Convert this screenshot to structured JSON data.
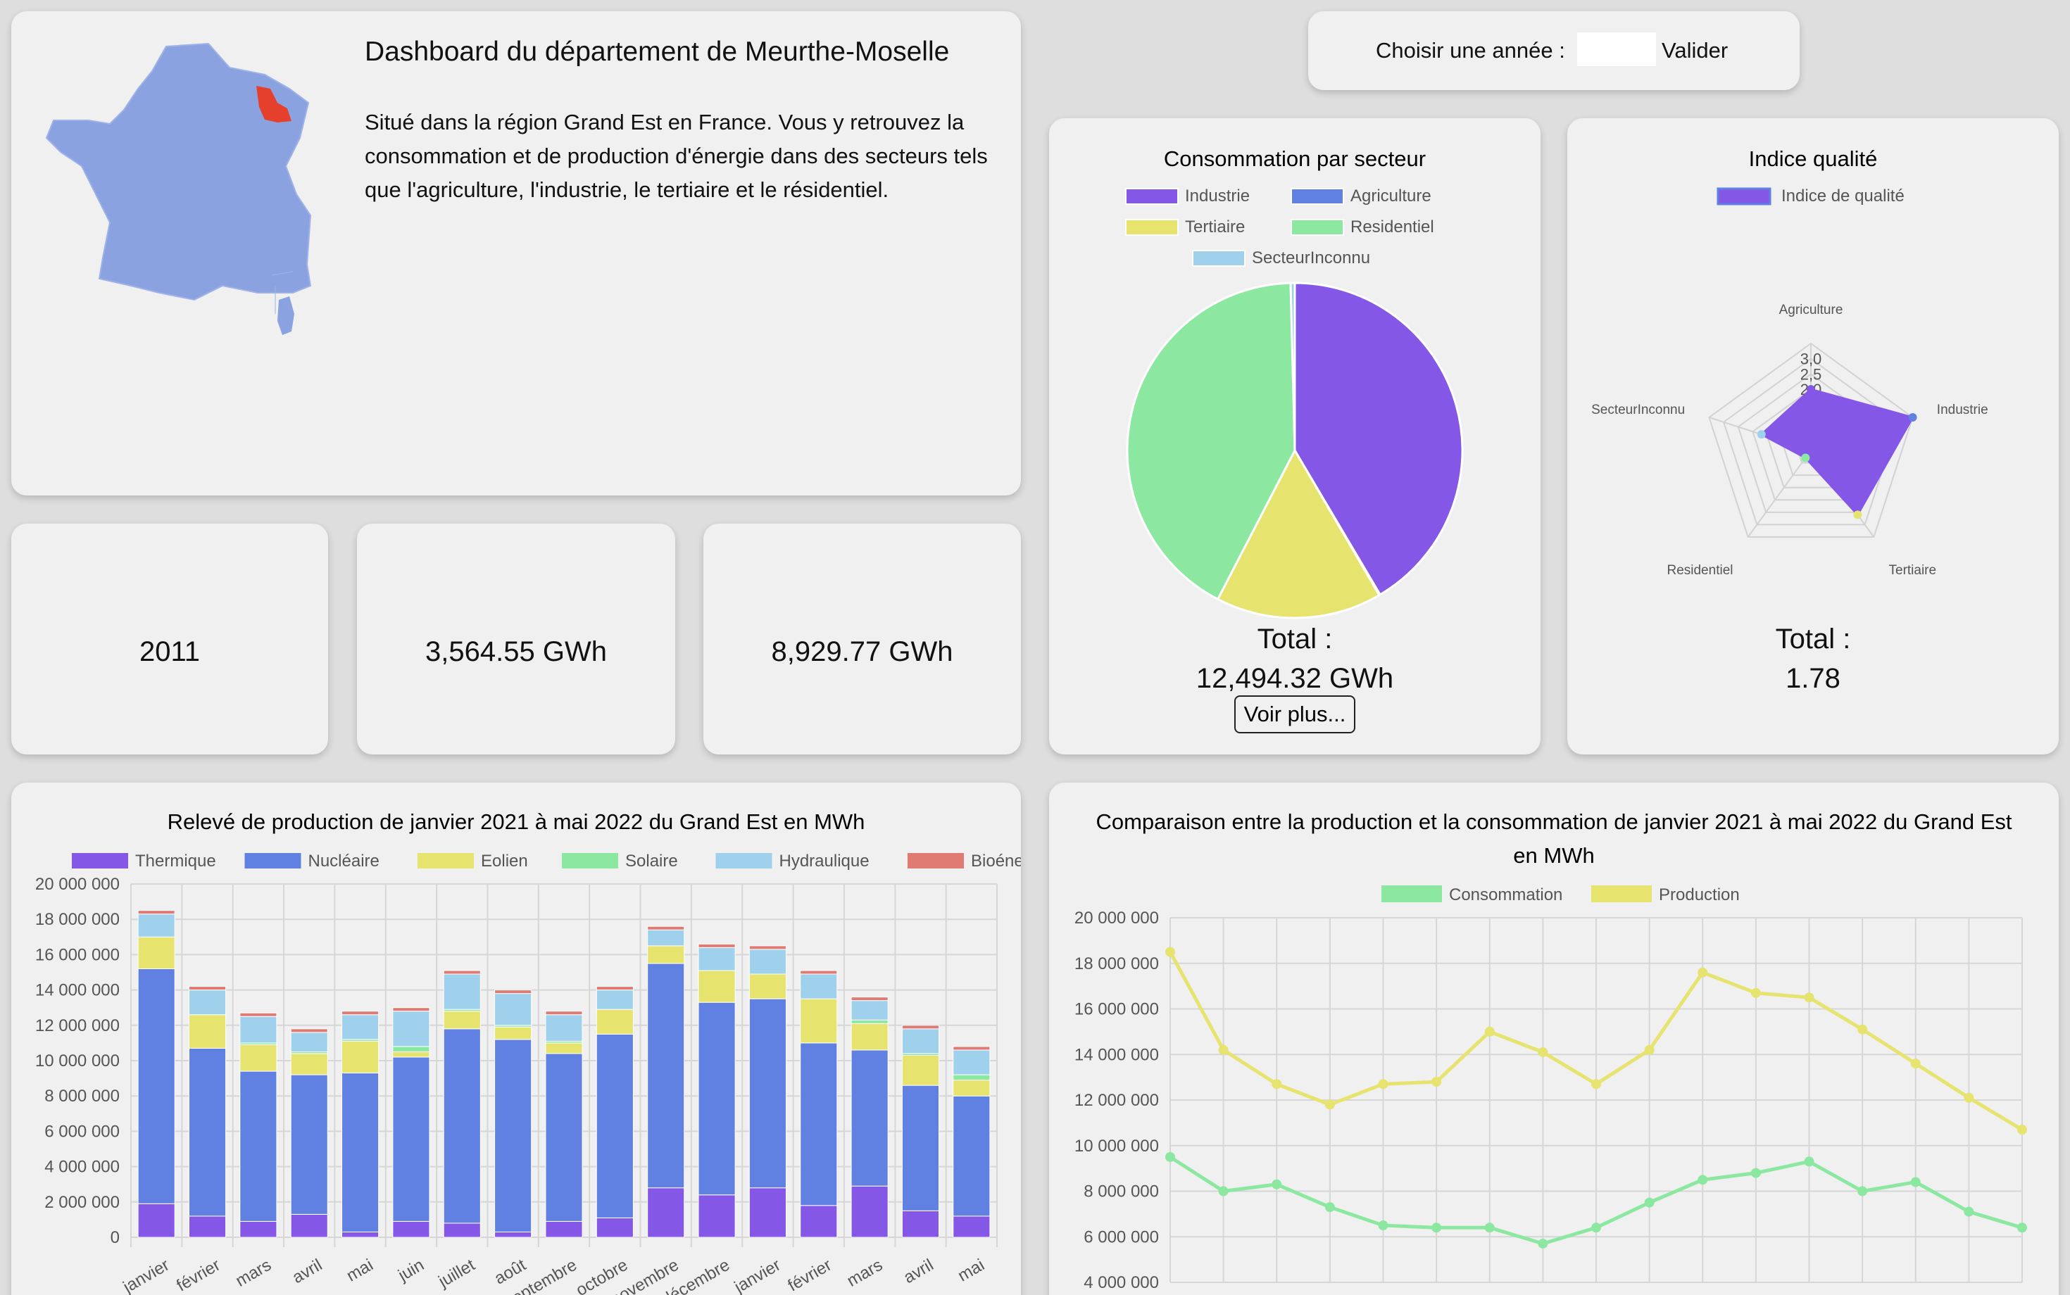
{
  "header": {
    "title": "Dashboard du département de Meurthe-Moselle",
    "description": "Situé dans la région Grand Est en France. Vous y retrouvez la consommation et de production d'énergie dans des secteurs tels que l'agriculture, l'industrie, le tertiaire et le résidentiel."
  },
  "year_picker": {
    "label": "Choisir une année :",
    "value": "",
    "submit_label": "Valider"
  },
  "kpis": [
    {
      "value": "2011"
    },
    {
      "value": "3,564.55 GWh"
    },
    {
      "value": "8,929.77 GWh"
    }
  ],
  "colors": {
    "purple": "#8457e6",
    "blue": "#6080e2",
    "yellow": "#e6e36e",
    "green": "#8ce8a0",
    "lightblue": "#9fd0ec",
    "red": "#df7b72"
  },
  "consumption_card": {
    "total_label": "Total :",
    "total_value": "12,494.32 GWh",
    "more_button": "Voir plus..."
  },
  "quality_card": {
    "total_label": "Total :",
    "total_value": "1.78"
  },
  "chart_data": [
    {
      "type": "pie",
      "title": "Consommation par secteur",
      "labels": [
        "Industrie",
        "Agriculture",
        "Tertiaire",
        "Residentiel",
        "SecteurInconnu"
      ],
      "values": [
        41.5,
        0.1,
        16.0,
        42.0,
        0.4
      ],
      "colors": [
        "#8457e6",
        "#6080e2",
        "#e6e36e",
        "#8ce8a0",
        "#9fd0ec"
      ],
      "legend": "top"
    },
    {
      "type": "radar",
      "title": "Indice qualité",
      "series": [
        {
          "name": "Indice de qualité",
          "values": [
            2.0,
            3.5,
            2.6,
            0.3,
            1.7
          ]
        }
      ],
      "axes": [
        "Agriculture",
        "Industrie",
        "Tertiaire",
        "Residentiel",
        "SecteurInconnu"
      ],
      "axis_colors": [
        "#8457e6",
        "#6080e2",
        "#e6e36e",
        "#8ce8a0",
        "#9fd0ec"
      ],
      "ticks": [
        "2,0",
        "2,5",
        "3,0"
      ],
      "range": [
        0,
        3.5
      ]
    },
    {
      "type": "bar",
      "stacked": true,
      "title": "Relevé de production de janvier 2021 à mai 2022 du Grand Est en MWh",
      "categories": [
        "janvier",
        "février",
        "mars",
        "avril",
        "mai",
        "juin",
        "juillet",
        "août",
        "septembre",
        "octobre",
        "novembre",
        "décembre",
        "janvier",
        "février",
        "mars",
        "avril",
        "mai"
      ],
      "series": [
        {
          "name": "Thermique",
          "values": [
            1900000,
            1200000,
            900000,
            1300000,
            300000,
            900000,
            800000,
            300000,
            900000,
            1100000,
            2800000,
            2400000,
            2800000,
            1800000,
            2900000,
            1500000,
            1200000
          ]
        },
        {
          "name": "Nucléaire",
          "values": [
            13300000,
            9500000,
            8500000,
            7900000,
            9000000,
            9300000,
            11000000,
            10900000,
            9500000,
            10400000,
            12700000,
            10900000,
            10700000,
            9200000,
            7700000,
            7100000,
            6800000
          ]
        },
        {
          "name": "Eolien",
          "values": [
            1800000,
            1900000,
            1500000,
            1200000,
            1800000,
            300000,
            1000000,
            700000,
            600000,
            1400000,
            1000000,
            1800000,
            1400000,
            2500000,
            1500000,
            1700000,
            900000
          ]
        },
        {
          "name": "Solaire",
          "values": [
            0,
            0,
            100000,
            100000,
            100000,
            300000,
            100000,
            100000,
            100000,
            0,
            0,
            0,
            0,
            0,
            200000,
            100000,
            300000
          ]
        },
        {
          "name": "Hydraulique",
          "values": [
            1300000,
            1400000,
            1500000,
            1100000,
            1400000,
            2000000,
            2000000,
            1800000,
            1500000,
            1100000,
            900000,
            1300000,
            1400000,
            1400000,
            1100000,
            1400000,
            1400000
          ]
        },
        {
          "name": "Bioénergies",
          "values": [
            200000,
            200000,
            200000,
            200000,
            200000,
            200000,
            200000,
            200000,
            200000,
            200000,
            200000,
            200000,
            200000,
            200000,
            200000,
            200000,
            200000
          ]
        }
      ],
      "ylim": [
        0,
        20000000
      ],
      "yticks": [
        "0",
        "2 000 000",
        "4 000 000",
        "6 000 000",
        "8 000 000",
        "10 000 000",
        "12 000 000",
        "14 000 000",
        "16 000 000",
        "18 000 000",
        "20 000 000"
      ],
      "legend": "top",
      "grid": true
    },
    {
      "type": "line",
      "title": "Comparaison entre la production et la consommation de janvier 2021 à mai 2022 du Grand Est en MWh",
      "series": [
        {
          "name": "Consommation",
          "values": [
            9500000,
            8000000,
            8300000,
            7300000,
            6500000,
            6400000,
            6400000,
            5700000,
            6400000,
            7500000,
            8500000,
            8800000,
            9300000,
            8000000,
            8400000,
            7100000,
            6400000
          ]
        },
        {
          "name": "Production",
          "values": [
            18500000,
            14200000,
            12700000,
            11800000,
            12700000,
            12800000,
            15000000,
            14100000,
            12700000,
            14200000,
            17600000,
            16700000,
            16500000,
            15100000,
            13600000,
            12100000,
            10700000
          ]
        }
      ],
      "ylim": [
        4000000,
        20000000
      ],
      "yticks": [
        "4 000 000",
        "6 000 000",
        "8 000 000",
        "10 000 000",
        "12 000 000",
        "14 000 000",
        "16 000 000",
        "18 000 000",
        "20 000 000"
      ],
      "legend": "top",
      "grid": true
    }
  ]
}
